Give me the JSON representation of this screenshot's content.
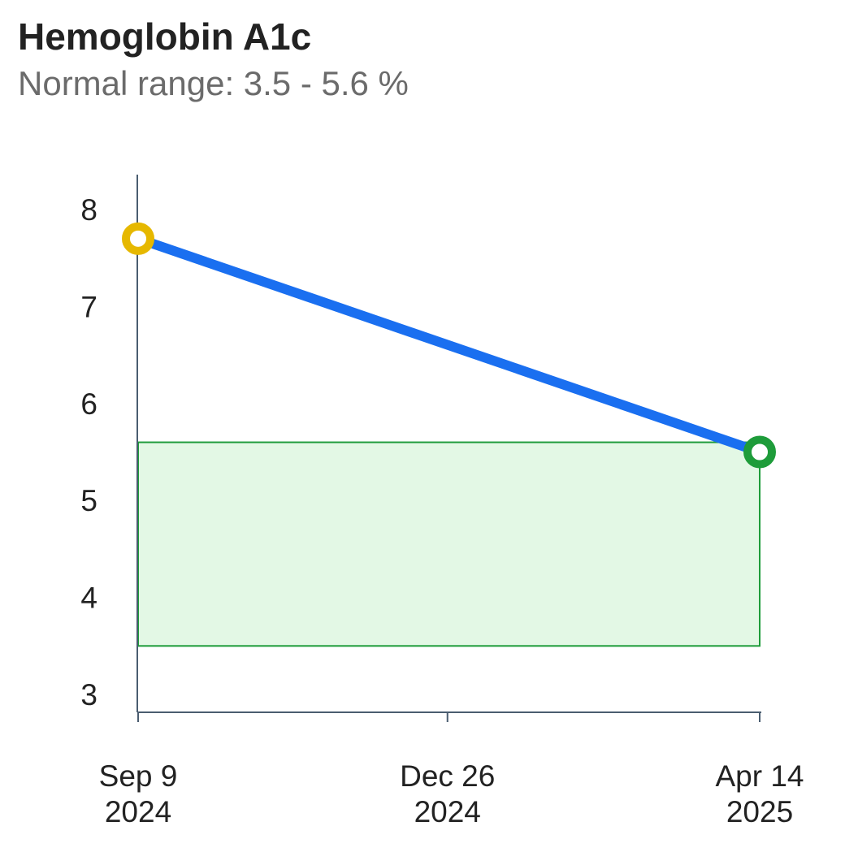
{
  "chart_data": {
    "type": "line",
    "title": "Hemoglobin A1c",
    "subtitle": "Normal range: 3.5 - 5.6 %",
    "x": [
      "2024-09-09",
      "2025-04-14"
    ],
    "series": [
      {
        "values": [
          7.7,
          5.5
        ],
        "color": "#1a6ff0",
        "point_colors": [
          "#e6b800",
          "#1e9c3a"
        ]
      }
    ],
    "normal_range": [
      3.5,
      5.6
    ],
    "normal_range_color": "#1e9c3a",
    "normal_range_fill": "#e3f8e5",
    "ylim": [
      3,
      8.4
    ],
    "yticks": [
      "3",
      "4",
      "5",
      "6",
      "7",
      "8"
    ],
    "ytick_values": [
      3,
      4,
      5,
      6,
      7,
      8
    ],
    "xticks": [
      {
        "date": "2024-09-09",
        "line1": "Sep 9",
        "line2": "2024"
      },
      {
        "date": "2024-12-26",
        "line1": "Dec 26",
        "line2": "2024"
      },
      {
        "date": "2025-04-14",
        "line1": "Apr 14",
        "line2": "2025"
      }
    ],
    "grid": false,
    "axis_color": "#4a5d70"
  }
}
